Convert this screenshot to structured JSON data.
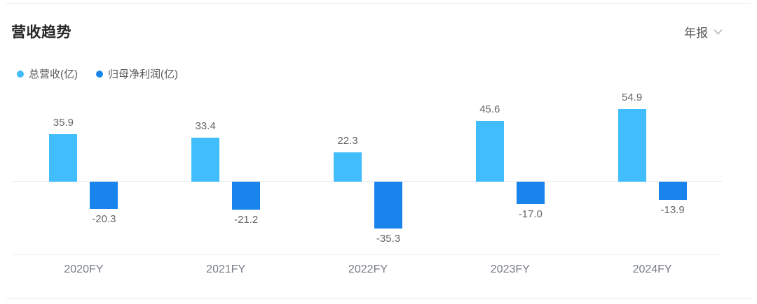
{
  "header": {
    "title": "营收趋势",
    "period_selector": {
      "label": "年报",
      "icon": "chevron-down-icon"
    }
  },
  "colors": {
    "series_revenue": "#41BDFC",
    "series_profit": "#1884EC",
    "title_text": "#262626",
    "secondary_text": "#595959",
    "value_label_text": "#666666",
    "axis_label_text": "#777C85",
    "divider": "#EAEAEA",
    "axis_line": "#F0F0F0"
  },
  "chart_data": {
    "type": "bar",
    "title": "营收趋势",
    "categories": [
      "2020FY",
      "2021FY",
      "2022FY",
      "2023FY",
      "2024FY"
    ],
    "series": [
      {
        "name": "总营收(亿)",
        "color": "#41BDFC",
        "values": [
          35.9,
          33.4,
          22.3,
          45.6,
          54.9
        ]
      },
      {
        "name": "归母净利润(亿)",
        "color": "#1884EC",
        "values": [
          -20.3,
          -21.2,
          -35.3,
          -17.0,
          -13.9
        ]
      }
    ],
    "xlabel": "",
    "ylabel": "",
    "ylim": [
      -40,
      60
    ],
    "grid": false,
    "zero_line": true,
    "value_labels": true,
    "value_label_decimals": 1,
    "legend_position": "top-left"
  }
}
